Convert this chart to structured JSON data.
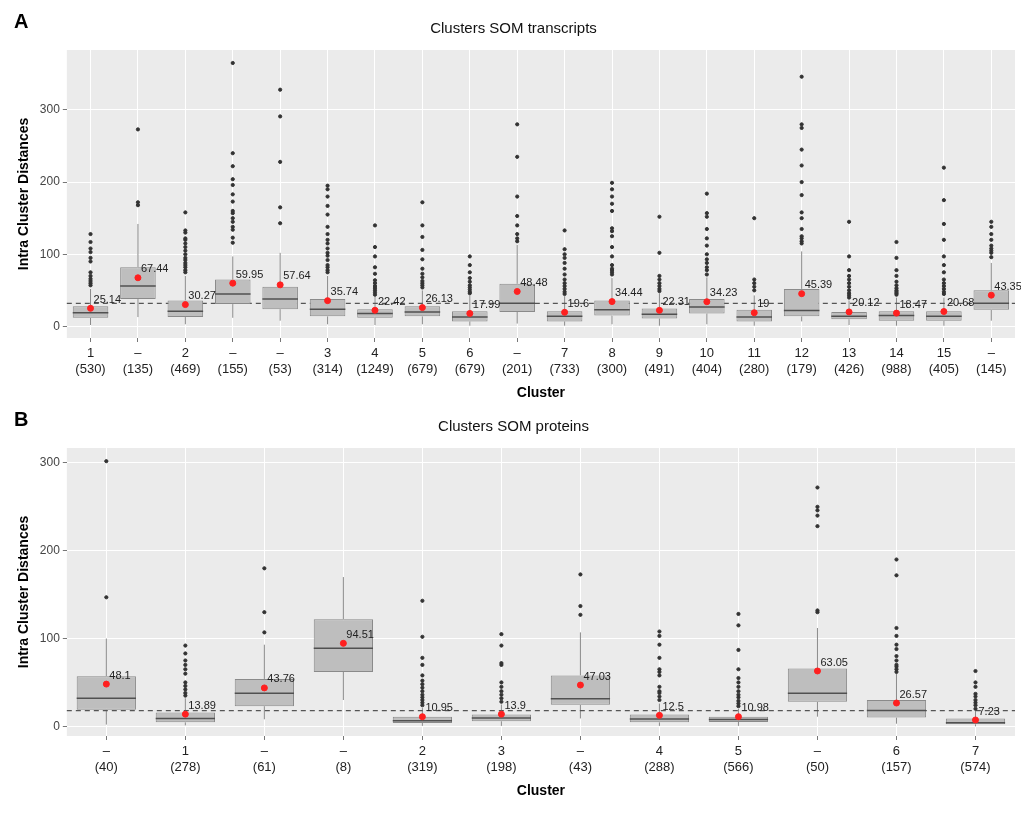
{
  "chart_data": [
    {
      "type": "box",
      "title": "Clusters SOM transcripts",
      "xlabel": "Cluster",
      "ylabel": "Intra Cluster Distances",
      "annotations": [
        "A"
      ],
      "categories": [
        "1\n(530)",
        "–\n(135)",
        "2\n(469)",
        "–\n(155)",
        "–\n(53)",
        "3\n(314)",
        "4\n(1249)",
        "5\n(679)",
        "6\n(679)",
        "–\n(201)",
        "7\n(733)",
        "8\n(300)",
        "9\n(491)",
        "10\n(404)",
        "11\n(280)",
        "12\n(179)",
        "13\n(426)",
        "14\n(988)",
        "15\n(405)",
        "–\n(145)"
      ],
      "boxes": [
        {
          "low": 2,
          "q1": 12,
          "median": 19,
          "q3": 28,
          "high": 52,
          "outliers": [
            57,
            60,
            63,
            66,
            70,
            75,
            90,
            95,
            103,
            108,
            117,
            128
          ]
        },
        {
          "low": 13,
          "q1": 38,
          "median": 56,
          "q3": 82,
          "high": 142,
          "outliers": [
            168,
            172,
            273
          ]
        },
        {
          "low": 3,
          "q1": 13,
          "median": 21,
          "q3": 36,
          "high": 70,
          "outliers": [
            75,
            78,
            82,
            85,
            88,
            92,
            95,
            100,
            105,
            110,
            115,
            120,
            122,
            130,
            133,
            158
          ]
        },
        {
          "low": 12,
          "q1": 31,
          "median": 45,
          "q3": 65,
          "high": 97,
          "outliers": [
            116,
            123,
            134,
            138,
            145,
            150,
            157,
            160,
            173,
            183,
            196,
            204,
            222,
            240,
            365
          ]
        },
        {
          "low": 8,
          "q1": 24,
          "median": 38,
          "q3": 55,
          "high": 102,
          "outliers": [
            143,
            165,
            228,
            291,
            328
          ]
        },
        {
          "low": 3,
          "q1": 14,
          "median": 24,
          "q3": 38,
          "high": 70,
          "outliers": [
            75,
            78,
            82,
            85,
            92,
            98,
            102,
            108,
            115,
            120,
            128,
            138,
            155,
            167,
            180,
            190,
            195
          ]
        },
        {
          "low": 2,
          "q1": 12,
          "median": 18,
          "q3": 24,
          "high": 41,
          "outliers": [
            44,
            47,
            50,
            53,
            56,
            60,
            64,
            73,
            82,
            97,
            110,
            140
          ]
        },
        {
          "low": 3,
          "q1": 14,
          "median": 20,
          "q3": 28,
          "high": 50,
          "outliers": [
            54,
            57,
            60,
            63,
            68,
            73,
            80,
            93,
            106,
            124,
            140,
            172
          ]
        },
        {
          "low": 1,
          "q1": 7,
          "median": 13,
          "q3": 21,
          "high": 43,
          "outliers": [
            46,
            48,
            51,
            54,
            57,
            62,
            67,
            75,
            85,
            97
          ]
        },
        {
          "low": 4,
          "q1": 20,
          "median": 32,
          "q3": 59,
          "high": 113,
          "outliers": [
            118,
            122,
            128,
            140,
            153,
            180,
            235,
            280
          ]
        },
        {
          "low": 1,
          "q1": 7,
          "median": 14,
          "q3": 21,
          "high": 42,
          "outliers": [
            45,
            48,
            52,
            56,
            60,
            65,
            72,
            80,
            88,
            95,
            100,
            107,
            133
          ]
        },
        {
          "low": 3,
          "q1": 15,
          "median": 23,
          "q3": 36,
          "high": 67,
          "outliers": [
            72,
            75,
            78,
            80,
            85,
            97,
            110,
            125,
            132,
            136,
            160,
            170,
            180,
            190,
            199
          ]
        },
        {
          "low": 1,
          "q1": 11,
          "median": 17,
          "q3": 25,
          "high": 46,
          "outliers": [
            49,
            52,
            56,
            60,
            65,
            70,
            102,
            152
          ]
        },
        {
          "low": 3,
          "q1": 18,
          "median": 27,
          "q3": 38,
          "high": 68,
          "outliers": [
            72,
            78,
            82,
            88,
            93,
            100,
            112,
            122,
            135,
            152,
            157,
            184
          ]
        },
        {
          "low": 1,
          "q1": 7,
          "median": 13,
          "q3": 23,
          "high": 43,
          "outliers": [
            50,
            55,
            60,
            65,
            150
          ]
        },
        {
          "low": 7,
          "q1": 14,
          "median": 22,
          "q3": 52,
          "high": 104,
          "outliers": [
            115,
            118,
            122,
            125,
            135,
            150,
            158,
            182,
            200,
            223,
            245,
            275,
            280,
            346
          ]
        },
        {
          "low": 2,
          "q1": 10,
          "median": 14,
          "q3": 20,
          "high": 36,
          "outliers": [
            40,
            43,
            46,
            50,
            55,
            60,
            65,
            70,
            78,
            97,
            145
          ]
        },
        {
          "low": 1,
          "q1": 8,
          "median": 15,
          "q3": 21,
          "high": 40,
          "outliers": [
            44,
            46,
            48,
            50,
            53,
            57,
            62,
            70,
            78,
            95,
            117
          ]
        },
        {
          "low": 1,
          "q1": 8,
          "median": 14,
          "q3": 21,
          "high": 40,
          "outliers": [
            45,
            48,
            52,
            56,
            60,
            65,
            75,
            85,
            97,
            120,
            142,
            175,
            220
          ]
        },
        {
          "low": 8,
          "q1": 23,
          "median": 32,
          "q3": 50,
          "high": 88,
          "outliers": [
            96,
            102,
            105,
            108,
            112,
            120,
            128,
            138,
            145
          ]
        }
      ],
      "series": [
        {
          "type": "scatter",
          "color": "#ff2020",
          "x": [
            "1\n(530)",
            "–\n(135)",
            "2\n(469)",
            "–\n(155)",
            "–\n(53)",
            "3\n(314)",
            "4\n(1249)",
            "5\n(679)",
            "6\n(679)",
            "–\n(201)",
            "7\n(733)",
            "8\n(300)",
            "9\n(491)",
            "10\n(404)",
            "11\n(280)",
            "12\n(179)",
            "13\n(426)",
            "14\n(988)",
            "15\n(405)",
            "–\n(145)"
          ],
          "values": [
            25.14,
            67.44,
            30.27,
            59.95,
            57.64,
            35.74,
            22.42,
            26.13,
            17.99,
            48.48,
            19.6,
            34.44,
            22.31,
            34.23,
            19,
            45.39,
            20.12,
            18.47,
            20.68,
            43.35
          ]
        }
      ],
      "data_labels": true,
      "marker": "circle",
      "ylim": [
        -16,
        383
      ],
      "yticks": [
        0,
        100,
        200,
        300
      ],
      "grid": true,
      "legend": false,
      "ref_lines": [
        {
          "axis": "y",
          "value": 32,
          "line_style": "dashed",
          "color": "#555555"
        }
      ]
    },
    {
      "type": "box",
      "title": "Clusters SOM proteins",
      "xlabel": "Cluster",
      "ylabel": "Intra Cluster Distances",
      "annotations": [
        "B"
      ],
      "categories": [
        "–\n(40)",
        "1\n(278)",
        "–\n(61)",
        "–\n(8)",
        "2\n(319)",
        "3\n(198)",
        "–\n(43)",
        "4\n(288)",
        "5\n(566)",
        "–\n(50)",
        "6\n(157)",
        "7\n(574)"
      ],
      "boxes": [
        {
          "low": 2,
          "q1": 19,
          "median": 32,
          "q3": 57,
          "high": 100,
          "outliers": [
            147,
            302
          ]
        },
        {
          "low": 1,
          "q1": 4.6,
          "median": 9,
          "q3": 15.7,
          "high": 32,
          "outliers": [
            35,
            38,
            42,
            46,
            50,
            60,
            65,
            70,
            75,
            83,
            92
          ]
        },
        {
          "low": 8,
          "q1": 23,
          "median": 37.6,
          "q3": 54,
          "high": 93,
          "outliers": [
            107,
            130,
            180
          ]
        },
        {
          "low": 30,
          "q1": 62,
          "median": 89,
          "q3": 122,
          "high": 170
        },
        {
          "low": 0.5,
          "q1": 3.8,
          "median": 6.5,
          "q3": 11,
          "high": 21,
          "outliers": [
            24,
            27,
            30,
            33,
            36,
            40,
            44,
            48,
            52,
            58,
            70,
            78,
            102,
            143
          ]
        },
        {
          "low": 0.5,
          "q1": 5.8,
          "median": 9.6,
          "q3": 13.4,
          "high": 25,
          "outliers": [
            28,
            32,
            36,
            40,
            45,
            50,
            70,
            72,
            92,
            105
          ]
        },
        {
          "low": 9,
          "q1": 24.5,
          "median": 31.5,
          "q3": 58,
          "high": 107,
          "outliers": [
            127,
            137,
            173
          ]
        },
        {
          "low": 0.5,
          "q1": 4.6,
          "median": 8.4,
          "q3": 13.4,
          "high": 26,
          "outliers": [
            30,
            34,
            38,
            40,
            45,
            58,
            62,
            65,
            78,
            93,
            103,
            108
          ]
        },
        {
          "low": 0.5,
          "q1": 5,
          "median": 7.7,
          "q3": 11,
          "high": 20,
          "outliers": [
            23,
            26,
            29,
            33,
            36,
            40,
            45,
            50,
            55,
            65,
            87,
            115,
            128
          ]
        },
        {
          "low": 11,
          "q1": 28,
          "median": 37.6,
          "q3": 66,
          "high": 112,
          "outliers": [
            130,
            132,
            228,
            240,
            246,
            250,
            272
          ]
        },
        {
          "low": 3,
          "q1": 10,
          "median": 18,
          "q3": 30,
          "high": 60,
          "outliers": [
            62,
            65,
            68,
            70,
            75,
            80,
            88,
            93,
            103,
            112,
            172,
            190
          ]
        },
        {
          "low": 0,
          "q1": 2.3,
          "median": 4.2,
          "q3": 8.8,
          "high": 18,
          "outliers": [
            20,
            24,
            27,
            30,
            34,
            37,
            45,
            50,
            63
          ]
        }
      ],
      "series": [
        {
          "type": "scatter",
          "color": "#ff2020",
          "x": [
            "–\n(40)",
            "1\n(278)",
            "–\n(61)",
            "–\n(8)",
            "2\n(319)",
            "3\n(198)",
            "–\n(43)",
            "4\n(288)",
            "5\n(566)",
            "–\n(50)",
            "6\n(157)",
            "7\n(574)"
          ],
          "values": [
            48.1,
            13.89,
            43.76,
            94.51,
            10.95,
            13.9,
            47.03,
            12.5,
            10.98,
            63.05,
            26.57,
            7.23
          ]
        }
      ],
      "data_labels": true,
      "marker": "circle",
      "ylim": [
        -11,
        317
      ],
      "yticks": [
        0,
        100,
        200,
        300
      ],
      "grid": true,
      "legend": false,
      "ref_lines": [
        {
          "axis": "y",
          "value": 18,
          "line_style": "dashed",
          "color": "#555555"
        }
      ]
    }
  ]
}
